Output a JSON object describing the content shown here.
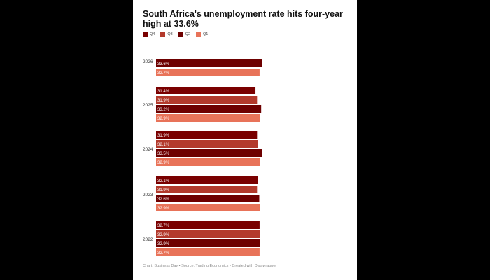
{
  "chart_data": {
    "type": "bar",
    "orientation": "horizontal",
    "title": "South Africa's unemployment rate hits four-year high at 33.6%",
    "categories": [
      "2026",
      "2025",
      "2024",
      "2023",
      "2022"
    ],
    "series": [
      {
        "name": "Q4",
        "color": "#7a0000",
        "values": [
          null,
          31.4,
          31.9,
          32.1,
          32.7
        ]
      },
      {
        "name": "Q3",
        "color": "#b33a2c",
        "values": [
          null,
          31.9,
          32.1,
          31.9,
          32.9
        ]
      },
      {
        "name": "Q2",
        "color": "#6e0000",
        "values": [
          33.6,
          33.2,
          33.5,
          32.6,
          32.9
        ]
      },
      {
        "name": "Q1",
        "color": "#e87359",
        "values": [
          32.7,
          32.9,
          32.9,
          32.9,
          32.7
        ]
      }
    ],
    "data_labels": [
      [
        null,
        null,
        "33.6%",
        "32.7%"
      ],
      [
        "31.4%",
        "31.9%",
        "33.2%",
        "32.9%"
      ],
      [
        "31.9%",
        "32.1%",
        "33.5%",
        "32.9%"
      ],
      [
        "32.1%",
        "31.9%",
        "32.6%",
        "32.9%"
      ],
      [
        "32.7%",
        "32.9%",
        "32.9%",
        "32.7%"
      ]
    ],
    "xlim": [
      0,
      33.6
    ],
    "grid": false,
    "legend_position": "top-left"
  },
  "footer": {
    "text": "Chart: Business Day • Source: Trading Economics • Created with Datawrapper"
  }
}
